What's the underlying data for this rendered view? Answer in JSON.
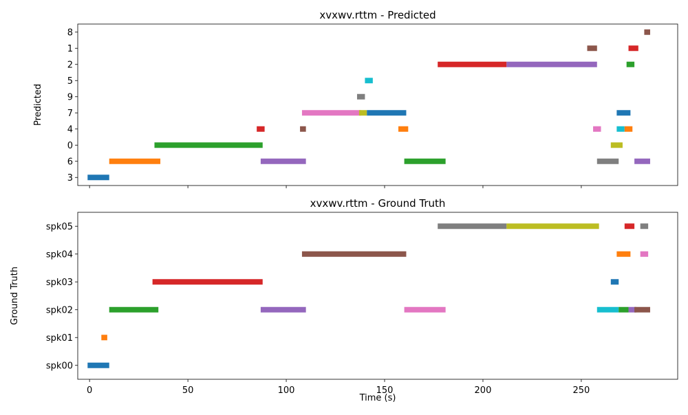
{
  "chart_data": [
    {
      "type": "timeline",
      "title": "xvxwv.rttm - Predicted",
      "xlabel": "",
      "ylabel": "Predicted",
      "xlim": [
        -6,
        299
      ],
      "xticks": [
        0,
        50,
        100,
        150,
        200,
        250
      ],
      "show_x_tick_labels": false,
      "rows": [
        "3",
        "6",
        "0",
        "4",
        "7",
        "9",
        "5",
        "2",
        "1",
        "8"
      ],
      "segments": [
        {
          "row": "3",
          "start": -1,
          "end": 10,
          "color": "#1f77b4"
        },
        {
          "row": "6",
          "start": 10,
          "end": 36,
          "color": "#ff7f0e"
        },
        {
          "row": "0",
          "start": 33,
          "end": 88,
          "color": "#2ca02c"
        },
        {
          "row": "4",
          "start": 85,
          "end": 89,
          "color": "#d62728"
        },
        {
          "row": "6",
          "start": 87,
          "end": 110,
          "color": "#9467bd"
        },
        {
          "row": "4",
          "start": 107,
          "end": 110,
          "color": "#8c564b"
        },
        {
          "row": "7",
          "start": 108,
          "end": 138,
          "color": "#e377c2"
        },
        {
          "row": "9",
          "start": 136,
          "end": 140,
          "color": "#7f7f7f"
        },
        {
          "row": "7",
          "start": 137,
          "end": 141,
          "color": "#bcbd22"
        },
        {
          "row": "5",
          "start": 140,
          "end": 144,
          "color": "#17becf"
        },
        {
          "row": "7",
          "start": 141,
          "end": 161,
          "color": "#1f77b4"
        },
        {
          "row": "4",
          "start": 157,
          "end": 162,
          "color": "#ff7f0e"
        },
        {
          "row": "6",
          "start": 160,
          "end": 181,
          "color": "#2ca02c"
        },
        {
          "row": "2",
          "start": 177,
          "end": 212,
          "color": "#d62728"
        },
        {
          "row": "2",
          "start": 212,
          "end": 258,
          "color": "#9467bd"
        },
        {
          "row": "1",
          "start": 253,
          "end": 258,
          "color": "#8c564b"
        },
        {
          "row": "4",
          "start": 256,
          "end": 260,
          "color": "#e377c2"
        },
        {
          "row": "6",
          "start": 258,
          "end": 269,
          "color": "#7f7f7f"
        },
        {
          "row": "0",
          "start": 265,
          "end": 271,
          "color": "#bcbd22"
        },
        {
          "row": "4",
          "start": 268,
          "end": 272,
          "color": "#17becf"
        },
        {
          "row": "7",
          "start": 268,
          "end": 275,
          "color": "#1f77b4"
        },
        {
          "row": "4",
          "start": 272,
          "end": 276,
          "color": "#ff7f0e"
        },
        {
          "row": "2",
          "start": 273,
          "end": 277,
          "color": "#2ca02c"
        },
        {
          "row": "1",
          "start": 274,
          "end": 279,
          "color": "#d62728"
        },
        {
          "row": "6",
          "start": 277,
          "end": 285,
          "color": "#9467bd"
        },
        {
          "row": "8",
          "start": 282,
          "end": 285,
          "color": "#8c564b"
        }
      ]
    },
    {
      "type": "timeline",
      "title": "xvxwv.rttm - Ground Truth",
      "xlabel": "Time (s)",
      "ylabel": "Ground Truth",
      "xlim": [
        -6,
        299
      ],
      "xticks": [
        0,
        50,
        100,
        150,
        200,
        250
      ],
      "show_x_tick_labels": true,
      "rows": [
        "spk00",
        "spk01",
        "spk02",
        "spk03",
        "spk04",
        "spk05"
      ],
      "segments": [
        {
          "row": "spk00",
          "start": -1,
          "end": 10,
          "color": "#1f77b4"
        },
        {
          "row": "spk01",
          "start": 6,
          "end": 9,
          "color": "#ff7f0e"
        },
        {
          "row": "spk02",
          "start": 10,
          "end": 35,
          "color": "#2ca02c"
        },
        {
          "row": "spk03",
          "start": 32,
          "end": 88,
          "color": "#d62728"
        },
        {
          "row": "spk02",
          "start": 87,
          "end": 110,
          "color": "#9467bd"
        },
        {
          "row": "spk04",
          "start": 108,
          "end": 161,
          "color": "#8c564b"
        },
        {
          "row": "spk02",
          "start": 160,
          "end": 181,
          "color": "#e377c2"
        },
        {
          "row": "spk05",
          "start": 177,
          "end": 212,
          "color": "#7f7f7f"
        },
        {
          "row": "spk05",
          "start": 212,
          "end": 259,
          "color": "#bcbd22"
        },
        {
          "row": "spk02",
          "start": 258,
          "end": 269,
          "color": "#17becf"
        },
        {
          "row": "spk03",
          "start": 265,
          "end": 269,
          "color": "#1f77b4"
        },
        {
          "row": "spk04",
          "start": 268,
          "end": 275,
          "color": "#ff7f0e"
        },
        {
          "row": "spk02",
          "start": 269,
          "end": 274,
          "color": "#2ca02c"
        },
        {
          "row": "spk05",
          "start": 272,
          "end": 277,
          "color": "#d62728"
        },
        {
          "row": "spk02",
          "start": 274,
          "end": 278,
          "color": "#9467bd"
        },
        {
          "row": "spk02",
          "start": 277,
          "end": 285,
          "color": "#8c564b"
        },
        {
          "row": "spk04",
          "start": 280,
          "end": 284,
          "color": "#e377c2"
        },
        {
          "row": "spk05",
          "start": 280,
          "end": 284,
          "color": "#7f7f7f"
        }
      ]
    }
  ]
}
